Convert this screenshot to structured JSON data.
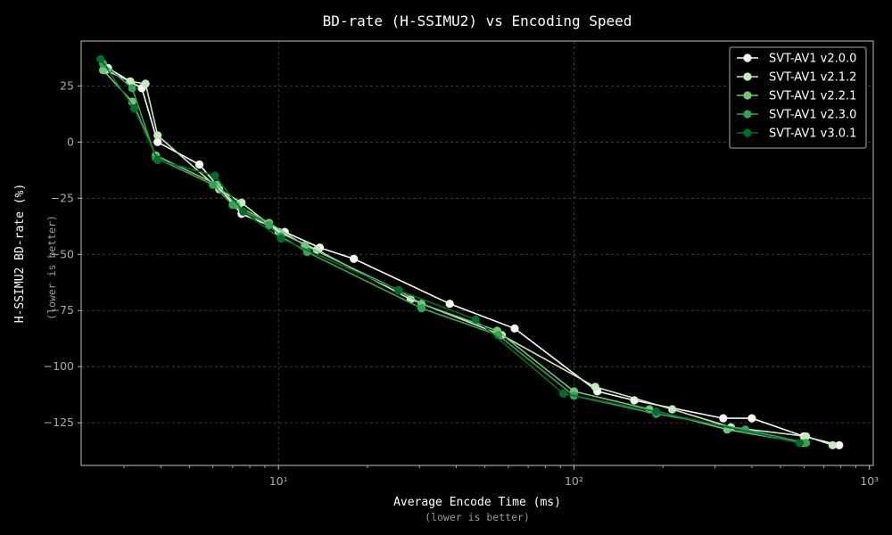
{
  "chart_data": {
    "type": "line",
    "title": "BD-rate (H-SSIMU2) vs Encoding Speed",
    "xlabel": "Average Encode Time (ms)",
    "xlabel_note": "(lower is better)",
    "ylabel": "H-SSIMU2 BD-rate (%)",
    "ylabel_note": "(lower is better)",
    "xscale": "log",
    "xlim": [
      2.15,
      1030
    ],
    "ylim": [
      -144,
      45
    ],
    "x_ticks": [
      {
        "value": 10,
        "label": "10¹"
      },
      {
        "value": 100,
        "label": "10²"
      },
      {
        "value": 1000,
        "label": "10³"
      }
    ],
    "y_ticks": [
      25,
      0,
      -25,
      -50,
      -75,
      -100,
      -125
    ],
    "grid": true,
    "legend_position": "top-right",
    "series": [
      {
        "name": "SVT-AV1 v2.0.0",
        "color": "#f7fcf5",
        "points": [
          [
            2.65,
            33
          ],
          [
            3.15,
            27
          ],
          [
            3.45,
            24
          ],
          [
            3.9,
            0
          ],
          [
            5.4,
            -10
          ],
          [
            7.5,
            -32
          ],
          [
            10.5,
            -40
          ],
          [
            13.8,
            -47
          ],
          [
            18.0,
            -52
          ],
          [
            38.0,
            -72
          ],
          [
            63.0,
            -83
          ],
          [
            120.0,
            -111
          ],
          [
            160.0,
            -115
          ],
          [
            320.0,
            -123
          ],
          [
            400.0,
            -123
          ],
          [
            600.0,
            -131
          ],
          [
            790.0,
            -135
          ]
        ]
      },
      {
        "name": "SVT-AV1 v2.1.2",
        "color": "#c7e9c0",
        "points": [
          [
            2.6,
            32
          ],
          [
            3.15,
            27
          ],
          [
            3.55,
            26
          ],
          [
            3.9,
            3
          ],
          [
            6.3,
            -21
          ],
          [
            7.5,
            -27
          ],
          [
            10.0,
            -40
          ],
          [
            13.5,
            -48
          ],
          [
            28.0,
            -70
          ],
          [
            57.0,
            -86
          ],
          [
            118.0,
            -109
          ],
          [
            215.0,
            -119
          ],
          [
            340.0,
            -127
          ],
          [
            610.0,
            -131
          ],
          [
            750.0,
            -135
          ]
        ]
      },
      {
        "name": "SVT-AV1 v2.2.1",
        "color": "#74c476",
        "points": [
          [
            2.55,
            32
          ],
          [
            3.2,
            18
          ],
          [
            3.85,
            -6
          ],
          [
            6.2,
            -19
          ],
          [
            7.2,
            -28
          ],
          [
            9.3,
            -36
          ],
          [
            12.3,
            -46
          ],
          [
            25.5,
            -66
          ],
          [
            30.5,
            -72
          ],
          [
            55.0,
            -84
          ],
          [
            100.0,
            -111
          ],
          [
            180.0,
            -119
          ],
          [
            330.0,
            -128
          ],
          [
            600.0,
            -134
          ]
        ]
      },
      {
        "name": "SVT-AV1 v2.3.0",
        "color": "#31a354",
        "points": [
          [
            2.55,
            35
          ],
          [
            3.2,
            24
          ],
          [
            3.85,
            -7
          ],
          [
            6.0,
            -19
          ],
          [
            7.0,
            -28
          ],
          [
            9.3,
            -37
          ],
          [
            10.2,
            -42
          ],
          [
            12.5,
            -49
          ],
          [
            30.5,
            -74
          ],
          [
            55.5,
            -86
          ],
          [
            100.0,
            -113
          ],
          [
            190.0,
            -121
          ],
          [
            380.0,
            -128
          ],
          [
            610.0,
            -134
          ]
        ]
      },
      {
        "name": "SVT-AV1 v3.0.1",
        "color": "#006d2c",
        "points": [
          [
            2.5,
            37
          ],
          [
            3.25,
            15
          ],
          [
            3.9,
            -8
          ],
          [
            6.1,
            -15
          ],
          [
            7.6,
            -31
          ],
          [
            10.2,
            -43
          ],
          [
            25.5,
            -66
          ],
          [
            46.5,
            -79
          ],
          [
            92.0,
            -112
          ],
          [
            190.0,
            -120
          ],
          [
            580.0,
            -134
          ]
        ]
      }
    ]
  }
}
